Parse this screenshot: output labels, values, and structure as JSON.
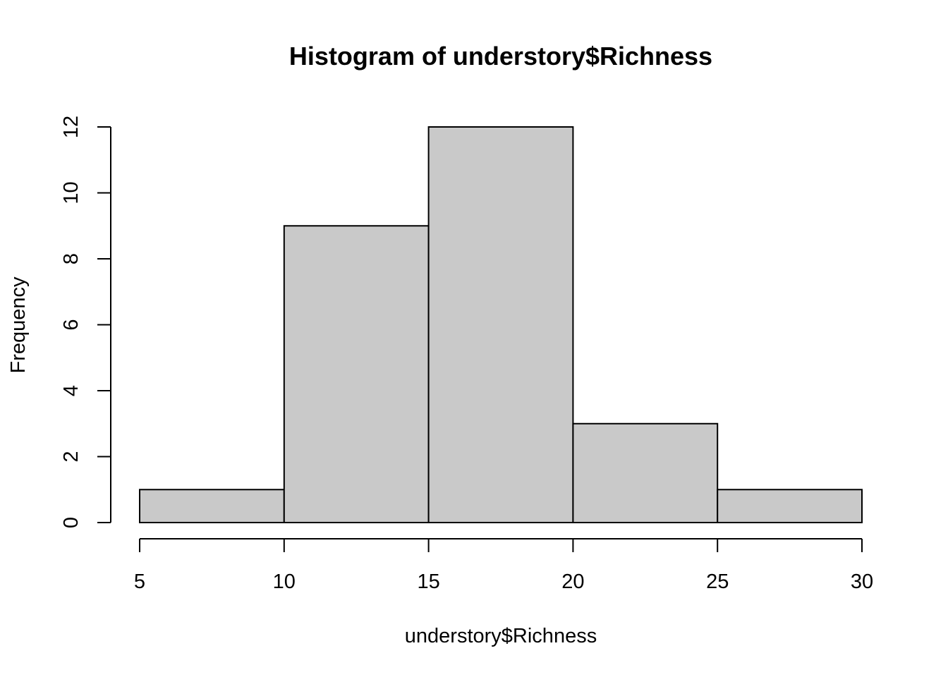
{
  "chart_data": {
    "type": "bar",
    "title": "Histogram of understory$Richness",
    "xlabel": "understory$Richness",
    "ylabel": "Frequency",
    "bins": [
      {
        "from": 5,
        "to": 10,
        "count": 1
      },
      {
        "from": 10,
        "to": 15,
        "count": 9
      },
      {
        "from": 15,
        "to": 20,
        "count": 12
      },
      {
        "from": 20,
        "to": 25,
        "count": 3
      },
      {
        "from": 25,
        "to": 30,
        "count": 1
      }
    ],
    "x_ticks": [
      "5",
      "10",
      "15",
      "20",
      "25",
      "30"
    ],
    "y_ticks": [
      "0",
      "2",
      "4",
      "6",
      "8",
      "10",
      "12"
    ],
    "xlim": [
      5,
      30
    ],
    "ylim": [
      0,
      12
    ],
    "grid": false,
    "colors": {
      "bar_fill": "#c9c9c9",
      "bar_stroke": "#000000"
    }
  }
}
